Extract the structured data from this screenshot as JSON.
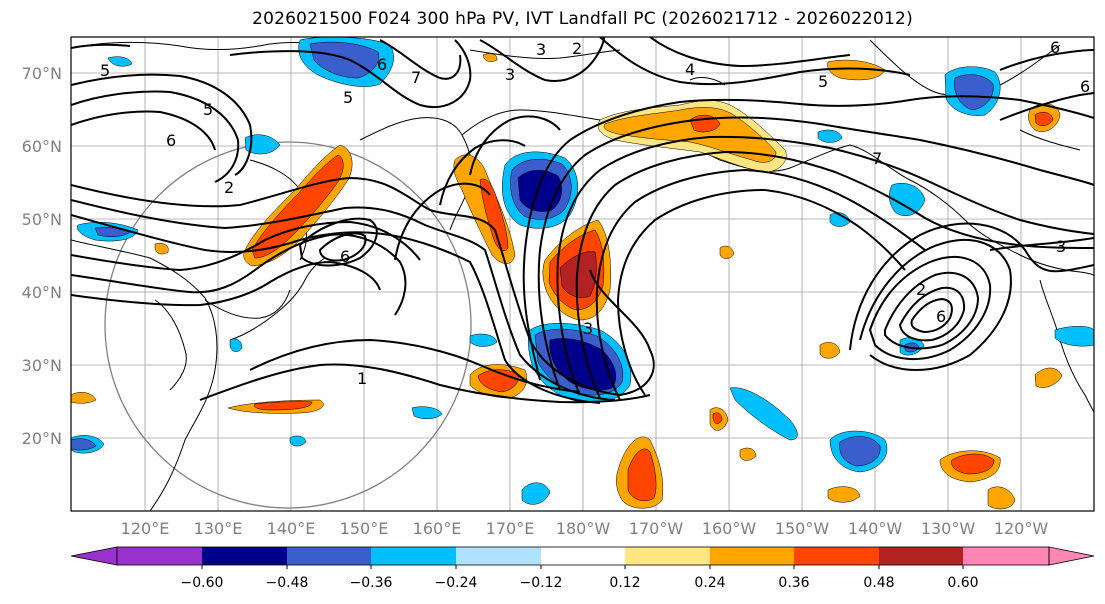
{
  "title": "2026021500 F024 300 hPa PV, IVT Landfall PC (2026021712 - 2026022012)",
  "lat_labels": [
    "70°N",
    "60°N",
    "50°N",
    "40°N",
    "30°N",
    "20°N"
  ],
  "lon_labels": [
    "120°E",
    "130°E",
    "140°E",
    "150°E",
    "160°E",
    "170°E",
    "180°W",
    "170°W",
    "160°W",
    "150°W",
    "140°W",
    "130°W",
    "120°W"
  ],
  "colorbar": {
    "ticks": [
      "−0.60",
      "−0.48",
      "−0.36",
      "−0.24",
      "−0.12",
      "0.12",
      "0.24",
      "0.36",
      "0.48",
      "0.60"
    ],
    "colors": [
      "#9932cc",
      "#00008b",
      "#3a5fcd",
      "#00bfff",
      "#b0e2ff",
      "#ffffff",
      "#ffe680",
      "#ffa500",
      "#ff4500",
      "#b22222",
      "#ff85b3"
    ]
  },
  "contour_labels": [
    "1",
    "2",
    "3",
    "4",
    "5",
    "6",
    "7"
  ]
}
